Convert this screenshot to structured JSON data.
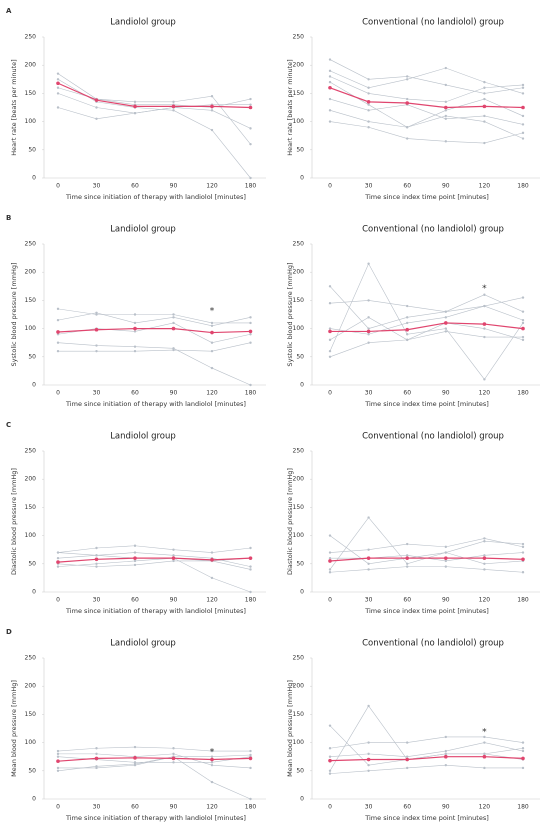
{
  "chart_data": [
    {
      "type": "line",
      "panel": "A",
      "title": "Landiolol group",
      "xlabel": "Time since initiation of therapy with landiolol [minutes]",
      "ylabel": "Heart rate [beats per minute]",
      "categories": [
        "0",
        "30",
        "60",
        "90",
        "120",
        "180"
      ],
      "ylim": [
        0,
        250
      ],
      "yticks": [
        0,
        50,
        100,
        150,
        200,
        250
      ],
      "series": [
        {
          "color": "#b9c0c9",
          "values": [
            185,
            140,
            130,
            130,
            125,
            140
          ]
        },
        {
          "color": "#b9c0c9",
          "values": [
            175,
            135,
            125,
            120,
            85,
            0
          ]
        },
        {
          "color": "#b9c0c9",
          "values": [
            160,
            140,
            135,
            135,
            145,
            60
          ]
        },
        {
          "color": "#b9c0c9",
          "values": [
            125,
            105,
            115,
            125,
            120,
            88
          ]
        },
        {
          "color": "#b9c0c9",
          "values": [
            150,
            125,
            115,
            125,
            130,
            130
          ]
        },
        {
          "color": "#e0456e",
          "values": [
            168,
            138,
            127,
            127,
            127,
            125
          ]
        }
      ]
    },
    {
      "type": "line",
      "title": "Conventional (no landiolol) group",
      "xlabel": "Time since index time point [minutes]",
      "ylabel": "Heart rate [beats per minute]",
      "categories": [
        "0",
        "30",
        "60",
        "90",
        "120",
        "180"
      ],
      "ylim": [
        0,
        250
      ],
      "yticks": [
        0,
        50,
        100,
        150,
        200,
        250
      ],
      "series": [
        {
          "color": "#b9c0c9",
          "values": [
            210,
            175,
            180,
            165,
            150,
            160
          ]
        },
        {
          "color": "#b9c0c9",
          "values": [
            100,
            90,
            70,
            65,
            62,
            80
          ]
        },
        {
          "color": "#b9c0c9",
          "values": [
            180,
            150,
            140,
            135,
            160,
            165
          ]
        },
        {
          "color": "#b9c0c9",
          "values": [
            140,
            120,
            130,
            105,
            110,
            95
          ]
        },
        {
          "color": "#b9c0c9",
          "values": [
            120,
            100,
            90,
            110,
            100,
            70
          ]
        },
        {
          "color": "#b9c0c9",
          "values": [
            190,
            160,
            175,
            195,
            170,
            150
          ]
        },
        {
          "color": "#b9c0c9",
          "values": [
            170,
            130,
            90,
            120,
            140,
            110
          ]
        },
        {
          "color": "#e0456e",
          "values": [
            160,
            135,
            133,
            125,
            127,
            125
          ]
        }
      ]
    },
    {
      "type": "line",
      "panel": "B",
      "title": "Landiolol group",
      "xlabel": "Time since initiation of therapy with landiolol [minutes]",
      "ylabel": "Systolic blood pressure [mmHg]",
      "categories": [
        "0",
        "30",
        "60",
        "90",
        "120",
        "180"
      ],
      "ylim": [
        0,
        250
      ],
      "yticks": [
        0,
        50,
        100,
        150,
        200,
        250
      ],
      "annotations": [
        {
          "text": "*",
          "x": "120",
          "y": 135
        }
      ],
      "series": [
        {
          "color": "#b9c0c9",
          "values": [
            135,
            125,
            125,
            125,
            110,
            110
          ]
        },
        {
          "color": "#b9c0c9",
          "values": [
            75,
            70,
            68,
            65,
            30,
            0
          ]
        },
        {
          "color": "#b9c0c9",
          "values": [
            60,
            60,
            60,
            62,
            60,
            75
          ]
        },
        {
          "color": "#b9c0c9",
          "values": [
            115,
            128,
            110,
            120,
            105,
            120
          ]
        },
        {
          "color": "#b9c0c9",
          "values": [
            90,
            100,
            95,
            110,
            75,
            90
          ]
        },
        {
          "color": "#e0456e",
          "values": [
            94,
            98,
            100,
            100,
            93,
            95
          ]
        }
      ]
    },
    {
      "type": "line",
      "title": "Conventional (no landiolol) group",
      "xlabel": "Time since index time point [minutes]",
      "ylabel": "Systolic blood pressure [mmHg]",
      "categories": [
        "0",
        "30",
        "60",
        "90",
        "120",
        "180"
      ],
      "ylim": [
        0,
        250
      ],
      "yticks": [
        0,
        50,
        100,
        150,
        200,
        250
      ],
      "annotations": [
        {
          "text": "*",
          "x": "120",
          "y": 175
        }
      ],
      "series": [
        {
          "color": "#b9c0c9",
          "values": [
            175,
            100,
            120,
            130,
            140,
            155
          ]
        },
        {
          "color": "#b9c0c9",
          "values": [
            60,
            215,
            90,
            100,
            10,
            110
          ]
        },
        {
          "color": "#b9c0c9",
          "values": [
            145,
            150,
            140,
            130,
            160,
            130
          ]
        },
        {
          "color": "#b9c0c9",
          "values": [
            50,
            75,
            80,
            95,
            85,
            85
          ]
        },
        {
          "color": "#b9c0c9",
          "values": [
            100,
            90,
            110,
            120,
            140,
            115
          ]
        },
        {
          "color": "#b9c0c9",
          "values": [
            80,
            120,
            80,
            110,
            100,
            80
          ]
        },
        {
          "color": "#e0456e",
          "values": [
            95,
            95,
            98,
            110,
            108,
            100
          ]
        }
      ]
    },
    {
      "type": "line",
      "panel": "C",
      "title": "Landiolol group",
      "xlabel": "Time since initiation of therapy with landiolol [minutes]",
      "ylabel": "Diastolic blood pressure [mmHg]",
      "categories": [
        "0",
        "30",
        "60",
        "90",
        "120",
        "180"
      ],
      "ylim": [
        0,
        250
      ],
      "yticks": [
        0,
        50,
        100,
        150,
        200,
        250
      ],
      "series": [
        {
          "color": "#b9c0c9",
          "values": [
            70,
            78,
            82,
            75,
            70,
            78
          ]
        },
        {
          "color": "#b9c0c9",
          "values": [
            45,
            50,
            55,
            60,
            25,
            0
          ]
        },
        {
          "color": "#b9c0c9",
          "values": [
            60,
            65,
            70,
            65,
            60,
            45
          ]
        },
        {
          "color": "#b9c0c9",
          "values": [
            50,
            45,
            48,
            55,
            55,
            60
          ]
        },
        {
          "color": "#b9c0c9",
          "values": [
            70,
            65,
            60,
            60,
            55,
            40
          ]
        },
        {
          "color": "#e0456e",
          "values": [
            53,
            58,
            60,
            60,
            57,
            60
          ]
        }
      ]
    },
    {
      "type": "line",
      "title": "Conventional (no landiolol) group",
      "xlabel": "Time since index time point [minutes]",
      "ylabel": "Diastolic blood pressure [mmHg]",
      "categories": [
        "0",
        "30",
        "60",
        "90",
        "120",
        "180"
      ],
      "ylim": [
        0,
        250
      ],
      "yticks": [
        0,
        50,
        100,
        150,
        200,
        250
      ],
      "series": [
        {
          "color": "#b9c0c9",
          "values": [
            100,
            50,
            60,
            70,
            90,
            85
          ]
        },
        {
          "color": "#b9c0c9",
          "values": [
            40,
            132,
            50,
            70,
            50,
            55
          ]
        },
        {
          "color": "#b9c0c9",
          "values": [
            70,
            75,
            85,
            80,
            95,
            80
          ]
        },
        {
          "color": "#b9c0c9",
          "values": [
            35,
            40,
            45,
            45,
            40,
            35
          ]
        },
        {
          "color": "#b9c0c9",
          "values": [
            60,
            60,
            65,
            55,
            65,
            70
          ]
        },
        {
          "color": "#e0456e",
          "values": [
            55,
            60,
            60,
            60,
            60,
            58
          ]
        }
      ]
    },
    {
      "type": "line",
      "panel": "D",
      "title": "Landiolol group",
      "xlabel": "Time since initiation of therapy with landiolol [minutes]",
      "ylabel": "Mean blood pressure [mmHg]",
      "categories": [
        "0",
        "30",
        "60",
        "90",
        "120",
        "180"
      ],
      "ylim": [
        0,
        250
      ],
      "yticks": [
        0,
        50,
        100,
        150,
        200,
        250
      ],
      "annotations": [
        {
          "text": "*",
          "x": "120",
          "y": 87
        }
      ],
      "series": [
        {
          "color": "#b9c0c9",
          "values": [
            85,
            90,
            92,
            90,
            85,
            85
          ]
        },
        {
          "color": "#b9c0c9",
          "values": [
            55,
            55,
            60,
            75,
            30,
            0
          ]
        },
        {
          "color": "#b9c0c9",
          "values": [
            75,
            70,
            65,
            65,
            65,
            75
          ]
        },
        {
          "color": "#b9c0c9",
          "values": [
            50,
            58,
            62,
            75,
            75,
            78
          ]
        },
        {
          "color": "#b9c0c9",
          "values": [
            80,
            80,
            75,
            80,
            60,
            55
          ]
        },
        {
          "color": "#e0456e",
          "values": [
            67,
            72,
            73,
            72,
            70,
            72
          ]
        }
      ]
    },
    {
      "type": "line",
      "title": "Conventional (no landiolol) group",
      "xlabel": "Time since index time point [minutes]",
      "ylabel": "Mean blood pressure [mmHg]",
      "categories": [
        "0",
        "30",
        "60",
        "90",
        "120",
        "180"
      ],
      "ylim": [
        0,
        250
      ],
      "yticks": [
        0,
        50,
        100,
        150,
        200,
        250
      ],
      "annotations": [
        {
          "text": "*",
          "x": "120",
          "y": 122
        }
      ],
      "series": [
        {
          "color": "#b9c0c9",
          "values": [
            130,
            60,
            70,
            80,
            80,
            90
          ]
        },
        {
          "color": "#b9c0c9",
          "values": [
            50,
            165,
            70,
            80,
            80,
            70
          ]
        },
        {
          "color": "#b9c0c9",
          "values": [
            90,
            100,
            100,
            110,
            110,
            100
          ]
        },
        {
          "color": "#b9c0c9",
          "values": [
            45,
            50,
            55,
            60,
            55,
            55
          ]
        },
        {
          "color": "#b9c0c9",
          "values": [
            75,
            80,
            75,
            85,
            100,
            85
          ]
        },
        {
          "color": "#e0456e",
          "values": [
            68,
            70,
            70,
            75,
            75,
            72
          ]
        }
      ]
    }
  ]
}
